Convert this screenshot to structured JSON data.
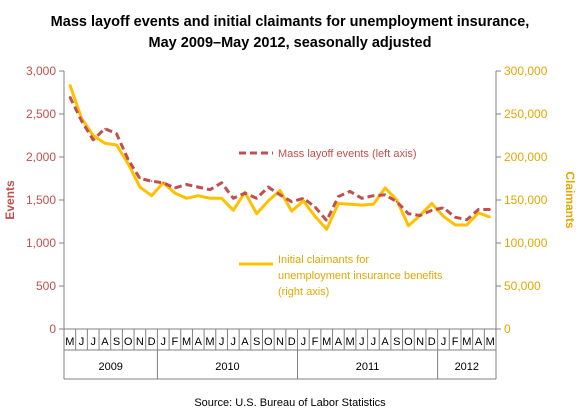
{
  "chart_data": {
    "type": "line",
    "title": "Mass layoff events and initial claimants for unemployment insurance,",
    "subtitle": "May 2009–May 2012, seasonally adjusted",
    "source": "Source: U.S. Bureau of Labor Statistics",
    "ylabel_left": "Events",
    "ylabel_right": "Claimants",
    "ylim_left": [
      0,
      3000
    ],
    "ylim_right": [
      0,
      300000
    ],
    "yticks_left": [
      "0",
      "500",
      "1,000",
      "1,500",
      "2,000",
      "2,500",
      "3,000"
    ],
    "yticks_right": [
      "0",
      "50,000",
      "100,000",
      "150,000",
      "200,000",
      "250,000",
      "300,000"
    ],
    "x": [
      "M",
      "J",
      "J",
      "A",
      "S",
      "O",
      "N",
      "D",
      "J",
      "F",
      "M",
      "A",
      "M",
      "J",
      "J",
      "A",
      "S",
      "O",
      "N",
      "D",
      "J",
      "F",
      "M",
      "A",
      "M",
      "J",
      "J",
      "A",
      "S",
      "O",
      "N",
      "D",
      "J",
      "F",
      "M",
      "A",
      "M"
    ],
    "years": [
      {
        "label": "2009",
        "start": 0,
        "end": 7
      },
      {
        "label": "2010",
        "start": 8,
        "end": 19
      },
      {
        "label": "2011",
        "start": 20,
        "end": 31
      },
      {
        "label": "2012",
        "start": 32,
        "end": 36
      }
    ],
    "grid": false,
    "series": [
      {
        "name": "Mass layoff events (left axis)",
        "axis": "left",
        "color": "#c0504d",
        "style": "dashed",
        "values": [
          2700,
          2420,
          2200,
          2330,
          2270,
          1970,
          1750,
          1720,
          1700,
          1640,
          1680,
          1650,
          1620,
          1700,
          1520,
          1580,
          1520,
          1650,
          1560,
          1480,
          1520,
          1420,
          1260,
          1540,
          1600,
          1520,
          1550,
          1560,
          1480,
          1340,
          1320,
          1380,
          1410,
          1300,
          1270,
          1390,
          1390
        ]
      },
      {
        "name": "Initial claimants for unemployment insurance benefits (right axis)",
        "legend_lines": [
          "Initial claimants for",
          "unemployment insurance benefits",
          "(right axis)"
        ],
        "axis": "right",
        "color": "#ffc000",
        "style": "solid",
        "values": [
          284000,
          245000,
          225000,
          216000,
          214000,
          192000,
          165000,
          155000,
          170000,
          158000,
          152000,
          155000,
          152000,
          152000,
          138000,
          159000,
          134000,
          149000,
          161000,
          137000,
          149000,
          131000,
          116000,
          146000,
          145000,
          144000,
          145000,
          164000,
          150000,
          120000,
          132000,
          146000,
          131000,
          121000,
          121000,
          135000,
          130000
        ]
      }
    ]
  }
}
